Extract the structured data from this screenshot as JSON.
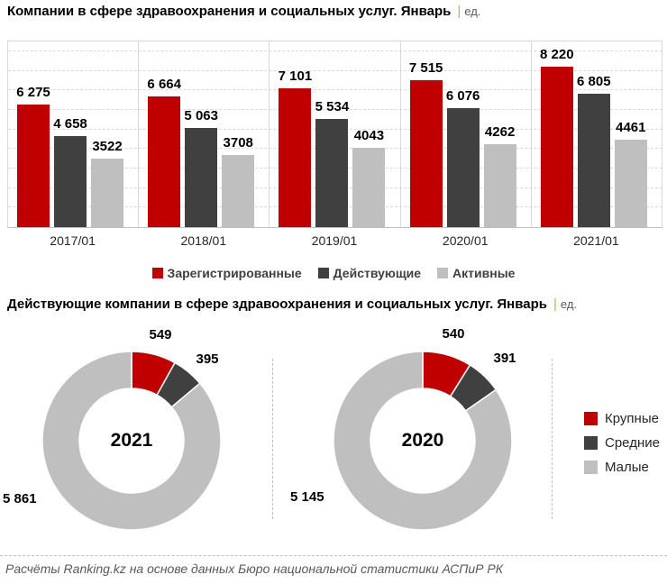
{
  "bar_section": {
    "title": "Компании в сфере здравоохранения и социальных услуг. Январь",
    "title_sep": "|",
    "title_unit": "ед."
  },
  "donut_section": {
    "title": "Действующие компании в сфере здравоохранения и социальных услуг. Январь",
    "title_sep": "|",
    "title_unit": "ед."
  },
  "footer": {
    "text": "Расчёты Ranking.kz на основе данных Бюро национальной статистики АСПиР РК"
  },
  "colors": {
    "red": "#C00000",
    "dark_gray": "#404040",
    "light_gray": "#BFBFBF",
    "gridline": "#D9D9D9"
  },
  "chart_data": [
    {
      "type": "bar",
      "title": "Компании в сфере здравоохранения и социальных услуг. Январь | ед.",
      "categories": [
        "2017/01",
        "2018/01",
        "2019/01",
        "2020/01",
        "2021/01"
      ],
      "series": [
        {
          "name": "Зарегистрированные",
          "color": "#C00000",
          "values": [
            6275,
            6664,
            7101,
            7515,
            8220
          ],
          "labels": [
            "6 275",
            "6 664",
            "7 101",
            "7 515",
            "8 220"
          ]
        },
        {
          "name": "Действующие",
          "color": "#404040",
          "values": [
            4658,
            5063,
            5534,
            6076,
            6805
          ],
          "labels": [
            "4 658",
            "5 063",
            "5 534",
            "6 076",
            "6 805"
          ]
        },
        {
          "name": "Активные",
          "color": "#BFBFBF",
          "values": [
            3522,
            3708,
            4043,
            4262,
            4461
          ],
          "labels": [
            "3522",
            "3708",
            "4043",
            "4262",
            "4461"
          ]
        }
      ],
      "xlabel": "",
      "ylabel": "",
      "ylim": [
        0,
        9500
      ],
      "gridline_step": 1000,
      "grid": true,
      "legend_position": "bottom"
    },
    {
      "type": "pie",
      "subtype": "donut",
      "title": "Действующие компании в сфере здравоохранения и социальных услуг. Январь | ед.",
      "legend": [
        "Крупные",
        "Средние",
        "Малые"
      ],
      "colors": [
        "#C00000",
        "#404040",
        "#BFBFBF"
      ],
      "legend_position": "right",
      "donuts": [
        {
          "center_label": "2021",
          "values": [
            549,
            395,
            5861
          ],
          "labels": [
            "549",
            "395",
            "5 861"
          ]
        },
        {
          "center_label": "2020",
          "values": [
            540,
            391,
            5145
          ],
          "labels": [
            "540",
            "391",
            "5 145"
          ]
        }
      ]
    }
  ]
}
